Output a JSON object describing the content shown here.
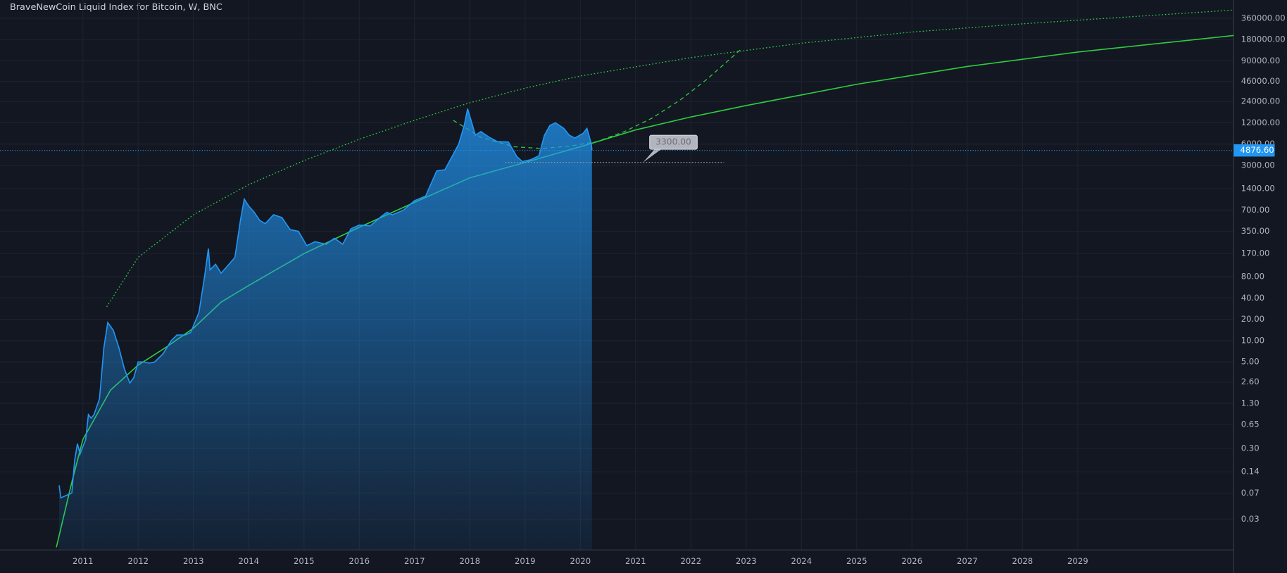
{
  "chart_data": {
    "type": "area",
    "title": "BraveNewCoin Liquid Index for Bitcoin, W, BNC",
    "log_scale": true,
    "grid": true,
    "color": "#2196f3",
    "xlim": [
      2009.5,
      2031.82
    ],
    "xticks": [
      2011,
      2012,
      2013,
      2014,
      2015,
      2016,
      2017,
      2018,
      2019,
      2020,
      2021,
      2022,
      2023,
      2024,
      2025,
      2026,
      2027,
      2028,
      2029
    ],
    "ylim": [
      0.011,
      650000
    ],
    "yticks": [
      {
        "value": 360000,
        "label": "360000.00"
      },
      {
        "value": 180000,
        "label": "180000.00"
      },
      {
        "value": 90000,
        "label": "90000.00"
      },
      {
        "value": 46000,
        "label": "46000.00"
      },
      {
        "value": 24000,
        "label": "24000.00"
      },
      {
        "value": 12000,
        "label": "12000.00"
      },
      {
        "value": 6000,
        "label": "6000.00"
      },
      {
        "value": 3000,
        "label": "3000.00"
      },
      {
        "value": 1400,
        "label": "1400.00"
      },
      {
        "value": 700,
        "label": "700.00"
      },
      {
        "value": 350,
        "label": "350.00"
      },
      {
        "value": 170,
        "label": "170.00"
      },
      {
        "value": 80,
        "label": "80.00"
      },
      {
        "value": 40,
        "label": "40.00"
      },
      {
        "value": 20,
        "label": "20.00"
      },
      {
        "value": 10,
        "label": "10.00"
      },
      {
        "value": 5,
        "label": "5.00"
      },
      {
        "value": 2.6,
        "label": "2.60"
      },
      {
        "value": 1.3,
        "label": "1.30"
      },
      {
        "value": 0.65,
        "label": "0.65"
      },
      {
        "value": 0.3,
        "label": "0.30"
      },
      {
        "value": 0.14,
        "label": "0.14"
      },
      {
        "value": 0.07,
        "label": "0.07"
      },
      {
        "value": 0.03,
        "label": "0.03"
      }
    ],
    "x": [
      2010.57,
      2010.6,
      2010.7,
      2010.8,
      2010.85,
      2010.9,
      2010.95,
      2011.05,
      2011.1,
      2011.15,
      2011.2,
      2011.3,
      2011.38,
      2011.45,
      2011.55,
      2011.65,
      2011.75,
      2011.85,
      2011.92,
      2012.0,
      2012.1,
      2012.2,
      2012.3,
      2012.45,
      2012.6,
      2012.7,
      2012.85,
      2012.95,
      2013.1,
      2013.2,
      2013.27,
      2013.3,
      2013.4,
      2013.5,
      2013.6,
      2013.75,
      2013.85,
      2013.92,
      2014.0,
      2014.1,
      2014.2,
      2014.3,
      2014.45,
      2014.6,
      2014.75,
      2014.9,
      2015.05,
      2015.2,
      2015.4,
      2015.55,
      2015.7,
      2015.85,
      2016.0,
      2016.2,
      2016.4,
      2016.5,
      2016.6,
      2016.8,
      2017.0,
      2017.2,
      2017.4,
      2017.55,
      2017.7,
      2017.8,
      2017.9,
      2017.96,
      2018.05,
      2018.1,
      2018.2,
      2018.35,
      2018.5,
      2018.7,
      2018.85,
      2018.95,
      2019.1,
      2019.25,
      2019.35,
      2019.45,
      2019.55,
      2019.7,
      2019.8,
      2019.9,
      2020.05,
      2020.12,
      2020.2,
      2020.21
    ],
    "values": [
      0.09,
      0.06,
      0.065,
      0.07,
      0.2,
      0.35,
      0.25,
      0.4,
      0.9,
      0.8,
      0.9,
      1.5,
      8,
      18,
      14,
      8,
      4,
      2.5,
      3,
      5,
      5,
      4.8,
      5,
      6.5,
      10,
      12,
      12,
      13,
      25,
      80,
      200,
      100,
      120,
      90,
      110,
      150,
      500,
      1000,
      800,
      650,
      500,
      450,
      600,
      550,
      370,
      350,
      220,
      250,
      230,
      280,
      230,
      380,
      430,
      420,
      570,
      650,
      600,
      700,
      950,
      1100,
      2500,
      2600,
      4300,
      6000,
      11000,
      19000,
      11000,
      8000,
      9000,
      7500,
      6500,
      6400,
      4000,
      3400,
      3600,
      4100,
      8000,
      11000,
      12000,
      10000,
      8000,
      7300,
      8500,
      10000,
      6000,
      4876.6
    ],
    "price_line": {
      "value": 4876.6,
      "label": "4876.60"
    },
    "annotation": {
      "value": 3300,
      "label": "3300.00",
      "x": [
        2018.64,
        2022.6
      ]
    },
    "lines": [
      {
        "style": "solid",
        "color": "#2ecc40",
        "x": [
          2010.52,
          2010.8,
          2011.0,
          2011.5,
          2012.0,
          2012.5,
          2013,
          2013.5,
          2014,
          2015,
          2016,
          2017,
          2018,
          2019,
          2020,
          2021,
          2022,
          2023,
          2025,
          2027,
          2029,
          2031.82
        ],
        "values": [
          0.012,
          0.1,
          0.4,
          2.0,
          4.5,
          8,
          15,
          35,
          60,
          170,
          400,
          900,
          2000,
          3300,
          5500,
          9500,
          14500,
          21000,
          42000,
          75000,
          120000,
          205000
        ]
      },
      {
        "style": "dotted",
        "color": "#2ecc40",
        "x": [
          2011.43,
          2012,
          2013,
          2014,
          2015,
          2016,
          2017,
          2018,
          2019,
          2020,
          2022,
          2024,
          2026,
          2028,
          2031.82
        ],
        "values": [
          30,
          150,
          600,
          1600,
          3500,
          7000,
          13000,
          23000,
          37000,
          55000,
          100000,
          160000,
          230000,
          300000,
          470000
        ]
      },
      {
        "style": "dashed",
        "color": "#2ecc40",
        "x": [
          2017.7,
          2018.2,
          2018.8,
          2019.3,
          2019.8,
          2020.3,
          2020.8,
          2021.3,
          2021.8,
          2022.3,
          2022.9
        ],
        "values": [
          13000,
          7500,
          5500,
          5200,
          5600,
          6500,
          9000,
          14000,
          25000,
          50000,
          130000
        ]
      }
    ]
  }
}
